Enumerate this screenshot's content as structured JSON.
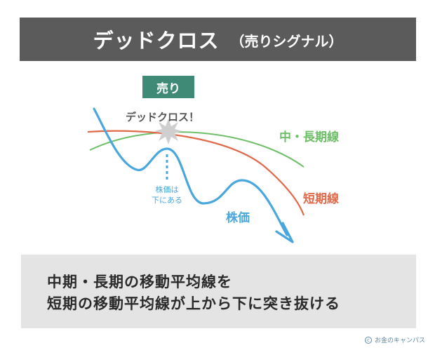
{
  "title": {
    "main": "デッドクロス",
    "sub": "（売りシグナル）"
  },
  "badge": {
    "label": "売り"
  },
  "diagram": {
    "cross_label": "デッドクロス！",
    "mid_long_label": "中・長期線",
    "short_label": "短期線",
    "price_label": "株価",
    "price_note_line1": "株価は",
    "price_note_line2": "下にある",
    "colors": {
      "price": "#4aa7de",
      "short": "#e2694a",
      "mid_long": "#6ebf67",
      "header": "#5b5b5b",
      "badge": "#3f8a76"
    }
  },
  "caption": {
    "line1": "中期・長期の移動平均線を",
    "line2": "短期の移動平均線が上から下に突き抜ける"
  },
  "credit": {
    "mark": "c",
    "text": "お金のキャンパス"
  }
}
